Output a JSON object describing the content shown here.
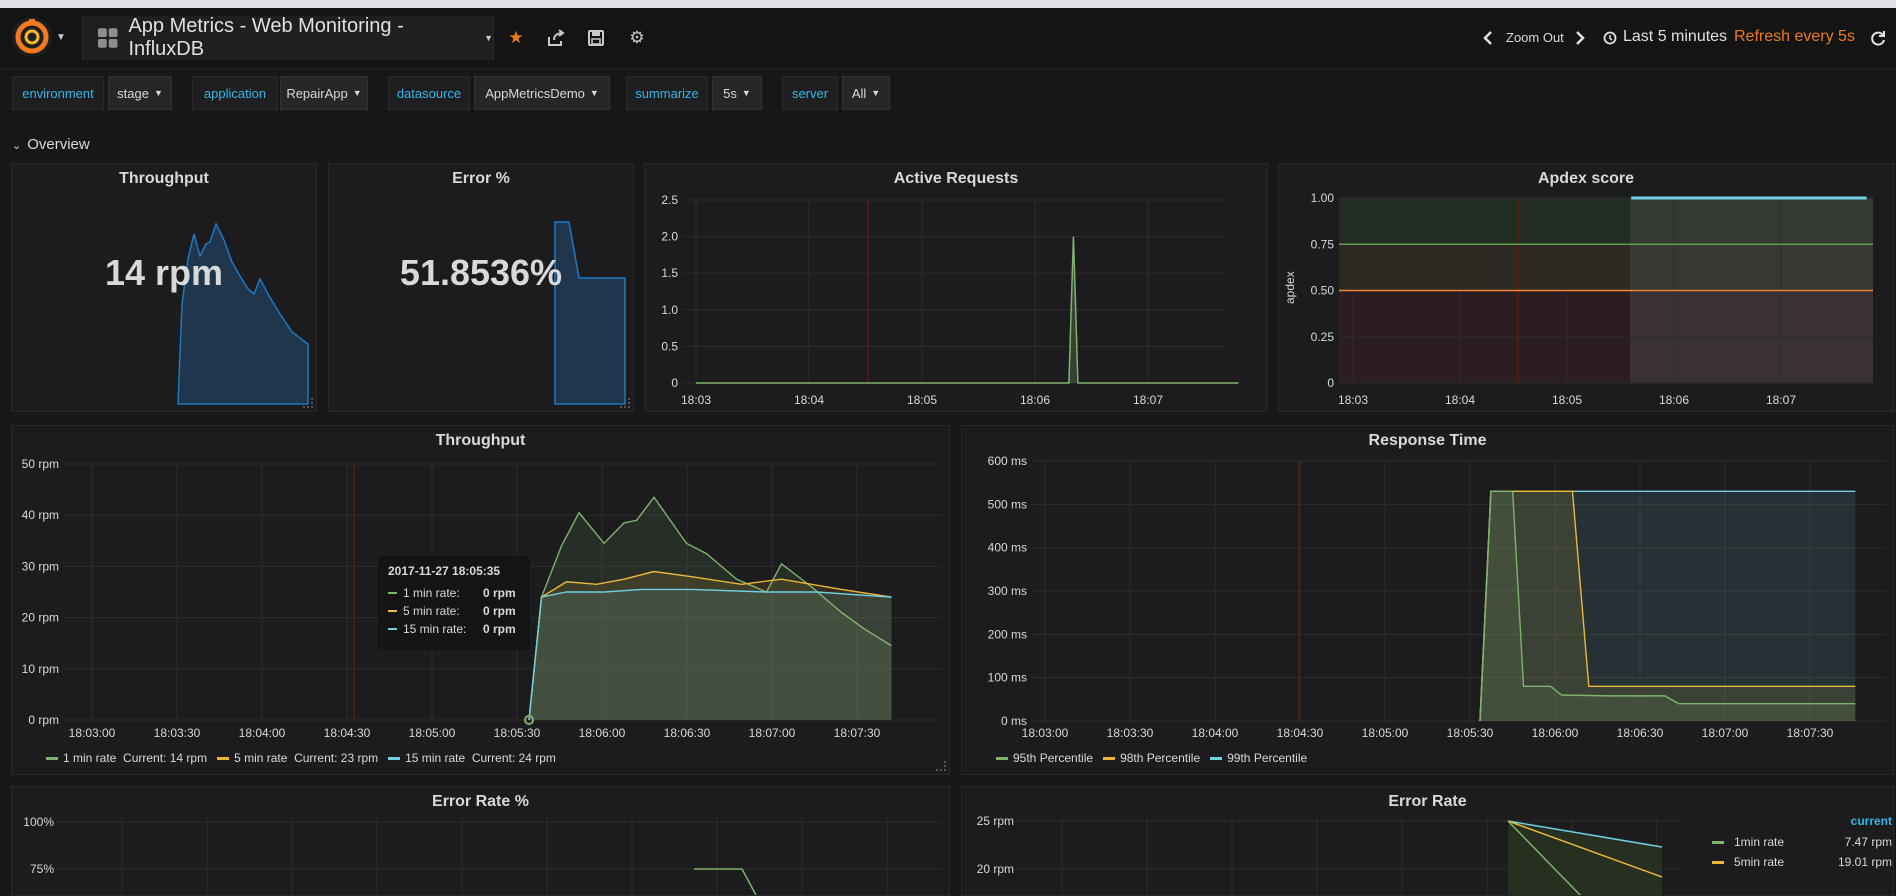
{
  "nav": {
    "title": "App Metrics - Web Monitoring - InfluxDB",
    "zoom_out": "Zoom Out",
    "time_range": "Last 5 minutes",
    "refresh": "Refresh every 5s"
  },
  "variables": [
    {
      "label": "environment",
      "value": "stage"
    },
    {
      "label": "application",
      "value": "RepairApp"
    },
    {
      "label": "datasource",
      "value": "AppMetricsDemo"
    },
    {
      "label": "summarize",
      "value": "5s"
    },
    {
      "label": "server",
      "value": "All"
    }
  ],
  "row": {
    "title": "Overview"
  },
  "colors": {
    "green": "#7eb26d",
    "yellow": "#eab839",
    "cyan": "#6ed0e0",
    "orange": "#ef843c",
    "blue": "#1f78c1",
    "red": "#890f02",
    "accent": "#33b5e5"
  },
  "panels": {
    "throughput_stat": {
      "title": "Throughput",
      "value": "14 rpm"
    },
    "error_stat": {
      "title": "Error %",
      "value": "51.8536%"
    },
    "active_requests": {
      "title": "Active Requests"
    },
    "apdex": {
      "title": "Apdex score",
      "ylabel": "apdex"
    },
    "throughput": {
      "title": "Throughput"
    },
    "response_time": {
      "title": "Response Time"
    },
    "error_rate_pct": {
      "title": "Error Rate %"
    },
    "error_rate": {
      "title": "Error Rate"
    }
  },
  "tooltip": {
    "time": "2017-11-27 18:05:35",
    "rows": [
      {
        "label": "1 min rate:",
        "value": "0 rpm"
      },
      {
        "label": "5 min rate:",
        "value": "0 rpm"
      },
      {
        "label": "15 min rate:",
        "value": "0 rpm"
      }
    ]
  },
  "throughput_legend": [
    {
      "name": "1 min rate",
      "current": "Current: 14 rpm"
    },
    {
      "name": "5 min rate",
      "current": "Current: 23 rpm"
    },
    {
      "name": "15 min rate",
      "current": "Current: 24 rpm"
    }
  ],
  "response_legend": [
    "95th Percentile",
    "98th Percentile",
    "99th Percentile"
  ],
  "error_rate_table": {
    "header": "current",
    "rows": [
      {
        "name": "1min rate",
        "value": "7.47 rpm"
      },
      {
        "name": "5min rate",
        "value": "19.01 rpm"
      }
    ]
  },
  "chart_data": [
    {
      "type": "line",
      "title": "Active Requests",
      "x_ticks": [
        "18:03",
        "18:04",
        "18:05",
        "18:06",
        "18:07"
      ],
      "y_ticks": [
        "0",
        "0.5",
        "1.0",
        "1.5",
        "2.0",
        "2.5"
      ],
      "ylim": [
        0,
        2.5
      ],
      "series": [
        {
          "values": [
            [
              0,
              0
            ],
            [
              3.2,
              0
            ],
            [
              3.3,
              0
            ],
            [
              3.34,
              2
            ],
            [
              3.38,
              0
            ],
            [
              4.8,
              0
            ]
          ]
        }
      ]
    },
    {
      "type": "line",
      "title": "Apdex score",
      "ylabel": "apdex",
      "x_ticks": [
        "18:03",
        "18:04",
        "18:05",
        "18:06",
        "18:07"
      ],
      "y_ticks": [
        "0",
        "0.25",
        "0.50",
        "0.75",
        "1.00"
      ],
      "ylim": [
        0,
        1.0
      ],
      "thresholds": [
        0.5,
        0.75
      ],
      "series": [
        {
          "values": [
            [
              2.6,
              1.0
            ],
            [
              4.8,
              1.0
            ]
          ]
        }
      ]
    },
    {
      "type": "area",
      "title": "Throughput",
      "x_ticks": [
        "18:03:00",
        "18:03:30",
        "18:04:00",
        "18:04:30",
        "18:05:00",
        "18:05:30",
        "18:06:00",
        "18:06:30",
        "18:07:00",
        "18:07:30"
      ],
      "y_ticks": [
        "0 rpm",
        "10 rpm",
        "20 rpm",
        "30 rpm",
        "40 rpm",
        "50 rpm"
      ],
      "ylim": [
        0,
        50
      ],
      "series": [
        {
          "name": "1 min rate",
          "values": [
            [
              155,
              0
            ],
            [
              160,
              24
            ],
            [
              168,
              34
            ],
            [
              175,
              40.5
            ],
            [
              185,
              34.5
            ],
            [
              193,
              38.5
            ],
            [
              198,
              39
            ],
            [
              205,
              43.5
            ],
            [
              218,
              34.5
            ],
            [
              226,
              32.5
            ],
            [
              238,
              27.5
            ],
            [
              250,
              25
            ],
            [
              256,
              30.5
            ],
            [
              268,
              26
            ],
            [
              280,
              21
            ],
            [
              290,
              17.5
            ],
            [
              300,
              14.5
            ]
          ]
        },
        {
          "name": "5 min rate",
          "values": [
            [
              155,
              0
            ],
            [
              160,
              24
            ],
            [
              170,
              27
            ],
            [
              182,
              26.5
            ],
            [
              193,
              27.5
            ],
            [
              205,
              29
            ],
            [
              220,
              28
            ],
            [
              240,
              26.5
            ],
            [
              256,
              27.5
            ],
            [
              280,
              25.5
            ],
            [
              300,
              24
            ]
          ]
        },
        {
          "name": "15 min rate",
          "values": [
            [
              155,
              0
            ],
            [
              160,
              24
            ],
            [
              170,
              25
            ],
            [
              185,
              25
            ],
            [
              200,
              25.5
            ],
            [
              220,
              25.5
            ],
            [
              250,
              25
            ],
            [
              270,
              25
            ],
            [
              300,
              24
            ]
          ]
        }
      ]
    },
    {
      "type": "area",
      "title": "Response Time",
      "x_ticks": [
        "18:03:00",
        "18:03:30",
        "18:04:00",
        "18:04:30",
        "18:05:00",
        "18:05:30",
        "18:06:00",
        "18:06:30",
        "18:07:00",
        "18:07:30"
      ],
      "y_ticks": [
        "0 ms",
        "100 ms",
        "200 ms",
        "300 ms",
        "400 ms",
        "500 ms",
        "600 ms"
      ],
      "ylim": [
        0,
        600
      ],
      "series": [
        {
          "name": "95th Percentile",
          "values": [
            [
              152,
              0
            ],
            [
              156,
              530
            ],
            [
              164,
              530
            ],
            [
              168,
              80
            ],
            [
              178,
              80
            ],
            [
              182,
              60
            ],
            [
              200,
              58
            ],
            [
              220,
              58
            ],
            [
              225,
              40
            ],
            [
              290,
              40
            ]
          ]
        },
        {
          "name": "98th Percentile",
          "values": [
            [
              152,
              0
            ],
            [
              156,
              530
            ],
            [
              186,
              530
            ],
            [
              192,
              80
            ],
            [
              240,
              80
            ],
            [
              290,
              80
            ]
          ]
        },
        {
          "name": "99th Percentile",
          "values": [
            [
              152,
              0
            ],
            [
              156,
              530
            ],
            [
              290,
              530
            ]
          ]
        }
      ]
    }
  ]
}
